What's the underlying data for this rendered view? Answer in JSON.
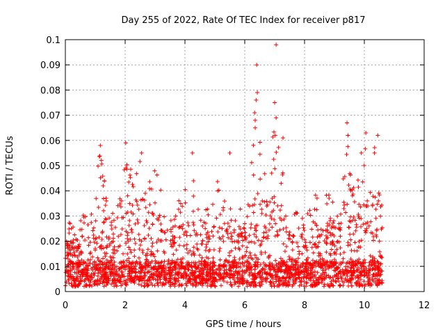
{
  "chart_data": {
    "type": "scatter",
    "title": "Day 255 of 2022, Rate Of TEC Index for receiver p817",
    "xlabel": "GPS time / hours",
    "ylabel": "ROTI / TECUs",
    "xlim": [
      0,
      12
    ],
    "ylim": [
      0,
      0.1
    ],
    "xticks": [
      "0",
      "2",
      "4",
      "6",
      "8",
      "10",
      "12"
    ],
    "yticks": [
      "0",
      "0.01",
      "0.02",
      "0.03",
      "0.04",
      "0.05",
      "0.06",
      "0.07",
      "0.08",
      "0.09",
      "0.1"
    ],
    "xtick_values": [
      0,
      2,
      4,
      6,
      8,
      10,
      12
    ],
    "ytick_values": [
      0,
      0.01,
      0.02,
      0.03,
      0.04,
      0.05,
      0.06,
      0.07,
      0.08,
      0.09,
      0.1
    ],
    "grid": true,
    "marker": "+",
    "color": "#ff0000",
    "data_range_hours": [
      0,
      10.6
    ],
    "envelope": [
      [
        0.0,
        0.026
      ],
      [
        0.2,
        0.028
      ],
      [
        0.4,
        0.022
      ],
      [
        0.6,
        0.033
      ],
      [
        0.8,
        0.028
      ],
      [
        1.0,
        0.038
      ],
      [
        1.15,
        0.058
      ],
      [
        1.3,
        0.045
      ],
      [
        1.5,
        0.03
      ],
      [
        1.7,
        0.035
      ],
      [
        1.9,
        0.045
      ],
      [
        2.0,
        0.059
      ],
      [
        2.2,
        0.05
      ],
      [
        2.4,
        0.052
      ],
      [
        2.6,
        0.055
      ],
      [
        2.8,
        0.045
      ],
      [
        3.0,
        0.053
      ],
      [
        3.2,
        0.042
      ],
      [
        3.4,
        0.03
      ],
      [
        3.6,
        0.028
      ],
      [
        3.8,
        0.038
      ],
      [
        4.0,
        0.042
      ],
      [
        4.2,
        0.055
      ],
      [
        4.4,
        0.035
      ],
      [
        4.6,
        0.03
      ],
      [
        4.8,
        0.035
      ],
      [
        5.1,
        0.045
      ],
      [
        5.3,
        0.035
      ],
      [
        5.5,
        0.055
      ],
      [
        5.7,
        0.032
      ],
      [
        5.9,
        0.035
      ],
      [
        6.1,
        0.035
      ],
      [
        6.3,
        0.07
      ],
      [
        6.6,
        0.056
      ],
      [
        6.8,
        0.035
      ],
      [
        7.0,
        0.075
      ],
      [
        7.2,
        0.055
      ],
      [
        7.4,
        0.035
      ],
      [
        7.6,
        0.03
      ],
      [
        7.8,
        0.033
      ],
      [
        8.0,
        0.039
      ],
      [
        8.3,
        0.04
      ],
      [
        8.6,
        0.033
      ],
      [
        8.8,
        0.042
      ],
      [
        9.1,
        0.035
      ],
      [
        9.4,
        0.067
      ],
      [
        9.6,
        0.045
      ],
      [
        9.8,
        0.045
      ],
      [
        10.0,
        0.063
      ],
      [
        10.2,
        0.045
      ],
      [
        10.4,
        0.062
      ],
      [
        10.6,
        0.033
      ]
    ],
    "notable_points": [
      {
        "x": 7.05,
        "y": 0.098
      },
      {
        "x": 6.4,
        "y": 0.09
      },
      {
        "x": 6.42,
        "y": 0.079
      },
      {
        "x": 6.38,
        "y": 0.076
      },
      {
        "x": 6.33,
        "y": 0.071
      },
      {
        "x": 6.35,
        "y": 0.068
      },
      {
        "x": 6.35,
        "y": 0.065
      },
      {
        "x": 7.0,
        "y": 0.075
      },
      {
        "x": 7.05,
        "y": 0.069
      },
      {
        "x": 7.28,
        "y": 0.061
      },
      {
        "x": 7.02,
        "y": 0.062
      },
      {
        "x": 5.5,
        "y": 0.055
      },
      {
        "x": 9.42,
        "y": 0.067
      },
      {
        "x": 9.45,
        "y": 0.062
      },
      {
        "x": 10.05,
        "y": 0.063
      },
      {
        "x": 10.45,
        "y": 0.062
      },
      {
        "x": 1.17,
        "y": 0.058
      },
      {
        "x": 2.02,
        "y": 0.059
      },
      {
        "x": 4.25,
        "y": 0.055
      },
      {
        "x": 2.55,
        "y": 0.055
      },
      {
        "x": 6.9,
        "y": 0.047
      },
      {
        "x": 7.1,
        "y": 0.034
      },
      {
        "x": 9.9,
        "y": 0.055
      }
    ]
  }
}
